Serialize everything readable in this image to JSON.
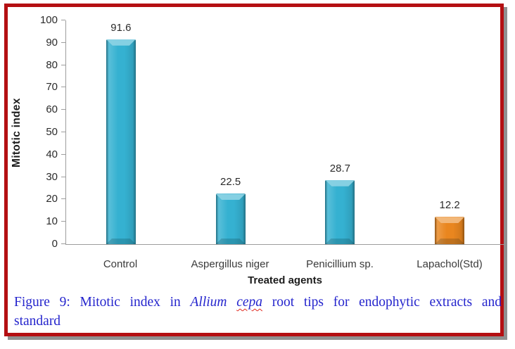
{
  "document": {
    "background": "#ffffff",
    "border_color": "#b40f12",
    "shadow_color": "#909090"
  },
  "chart_data": {
    "type": "bar",
    "title": "",
    "categories": [
      "Control",
      "Aspergillus niger",
      "Penicillium sp.",
      "Lapachol(Std)"
    ],
    "values": [
      91.6,
      22.5,
      28.7,
      12.2
    ],
    "value_labels": [
      "91.6",
      "22.5",
      "28.7",
      "12.2"
    ],
    "bar_colors": [
      "#35b1d1",
      "#35b1d1",
      "#35b1d1",
      "#e9861f"
    ],
    "xlabel": "Treated agents",
    "ylabel": "Mitotic index",
    "ylim": [
      0,
      100
    ],
    "yticks": [
      0,
      10,
      20,
      30,
      40,
      50,
      60,
      70,
      80,
      90,
      100
    ],
    "grid": false,
    "legend_position": "none",
    "axis_color": "#9d9d9d",
    "tick_label_color": "#2b2b2b"
  },
  "caption": {
    "prefix": "Figure 9: Mitotic index in",
    "genus": "Allium",
    "species": "cepa",
    "suffix": "root tips for endophytic extracts and",
    "line2": "standard",
    "text_color": "#2525cd",
    "spellcheck_underline_color": "#e0281e"
  }
}
